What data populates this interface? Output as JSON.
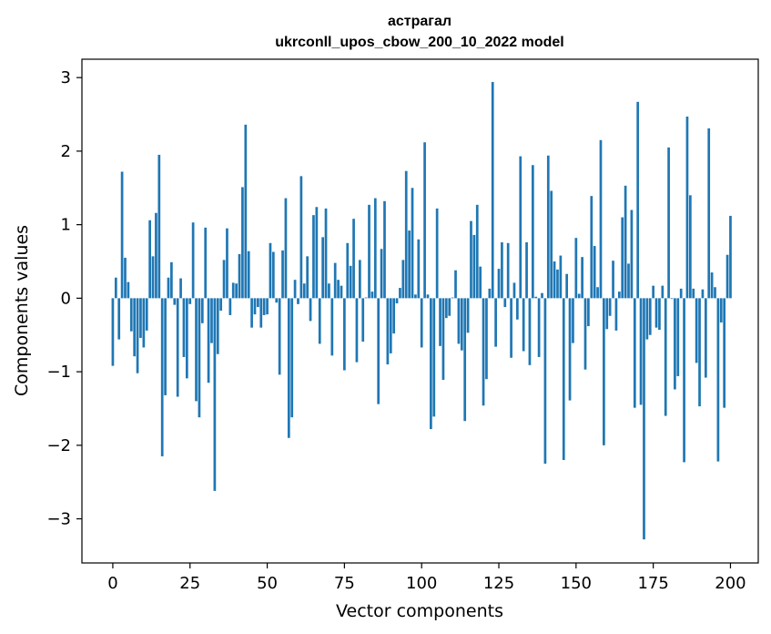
{
  "chart_data": {
    "type": "bar",
    "title_line1": "астрагал",
    "title_line2": "ukrconll_upos_cbow_200_10_2022 model",
    "xlabel": "Vector components",
    "ylabel": "Components values",
    "xlim": [
      -10,
      209
    ],
    "ylim": [
      -3.6,
      3.25
    ],
    "xticks": [
      0,
      25,
      50,
      75,
      100,
      125,
      150,
      175,
      200
    ],
    "yticks": [
      -3,
      -2,
      -1,
      0,
      1,
      2,
      3
    ],
    "xtick_labels": [
      "0",
      "25",
      "50",
      "75",
      "100",
      "125",
      "150",
      "175",
      "200"
    ],
    "ytick_labels": [
      "−3",
      "−2",
      "−1",
      "0",
      "1",
      "2",
      "3"
    ],
    "grid": false,
    "bar_color": "#1f77b4",
    "values": [
      -0.92,
      0.28,
      -0.56,
      1.72,
      0.55,
      0.22,
      -0.45,
      -0.79,
      -1.02,
      -0.54,
      -0.67,
      -0.44,
      1.06,
      0.57,
      1.16,
      1.95,
      -2.15,
      -1.32,
      0.28,
      0.49,
      -0.09,
      -1.34,
      0.27,
      -0.8,
      -1.09,
      -0.08,
      1.03,
      -1.4,
      -1.62,
      -0.34,
      0.96,
      -1.15,
      -0.61,
      -2.62,
      -0.76,
      -0.17,
      0.52,
      0.95,
      -0.23,
      0.21,
      0.2,
      0.6,
      1.51,
      2.36,
      0.64,
      -0.4,
      -0.22,
      -0.12,
      -0.4,
      -0.23,
      -0.22,
      0.75,
      0.63,
      -0.06,
      -1.04,
      0.65,
      1.36,
      -1.9,
      -1.62,
      0.25,
      -0.08,
      1.66,
      0.2,
      0.57,
      -0.31,
      1.13,
      1.24,
      -0.62,
      0.83,
      1.22,
      0.2,
      -0.78,
      0.48,
      0.25,
      0.17,
      -0.98,
      0.75,
      0.44,
      1.08,
      -0.87,
      0.52,
      -0.59,
      0.01,
      1.27,
      0.09,
      1.36,
      -1.44,
      0.67,
      1.32,
      -0.9,
      -0.75,
      -0.48,
      -0.07,
      0.14,
      0.52,
      1.73,
      0.92,
      1.5,
      0.05,
      0.8,
      -0.67,
      2.12,
      0.05,
      -1.78,
      -1.61,
      1.22,
      -0.65,
      -1.11,
      -0.27,
      -0.24,
      0.01,
      0.38,
      -0.62,
      -0.71,
      -1.67,
      -0.47,
      1.05,
      0.86,
      1.27,
      0.43,
      -1.46,
      -1.1,
      0.13,
      2.94,
      -0.66,
      0.4,
      0.76,
      -0.12,
      0.75,
      -0.81,
      0.21,
      -0.29,
      1.93,
      -0.72,
      0.76,
      -0.91,
      1.81,
      0.02,
      -0.8,
      0.07,
      -2.25,
      1.94,
      1.46,
      0.5,
      0.39,
      0.58,
      -2.2,
      0.33,
      -1.39,
      -0.61,
      0.82,
      0.06,
      0.56,
      -0.97,
      -0.38,
      1.39,
      0.71,
      0.15,
      2.15,
      -2.0,
      -0.42,
      -0.24,
      0.51,
      -0.44,
      0.09,
      1.1,
      1.53,
      0.47,
      1.2,
      -1.49,
      2.67,
      -1.45,
      -3.28,
      -0.56,
      -0.5,
      0.17,
      -0.4,
      -0.43,
      0.17,
      -1.6,
      2.05,
      -0.01,
      -1.24,
      -1.06,
      0.13,
      -2.23,
      2.47,
      1.4,
      0.13,
      -0.88,
      -1.47,
      0.12,
      -1.08,
      2.31,
      0.35,
      0.15,
      -2.22,
      -0.33,
      -1.49,
      0.59,
      1.12
    ]
  }
}
